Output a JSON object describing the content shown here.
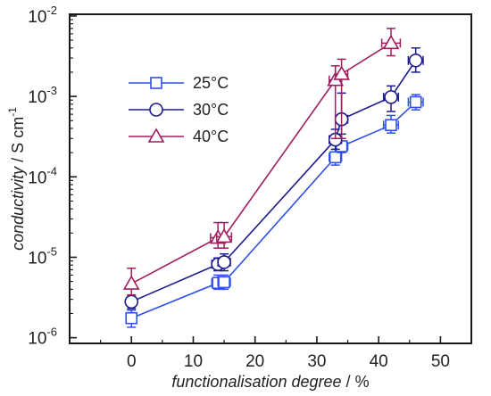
{
  "chart_data": {
    "type": "scatter",
    "title": "",
    "xlabel": {
      "italic": "functionalisation degree",
      "unit": "%"
    },
    "ylabel": {
      "italic": "conductivity",
      "unit": "S cm",
      "unit_sup": "-1"
    },
    "x_scale": "linear",
    "y_scale": "log",
    "xlim": [
      -10,
      55
    ],
    "ylim": [
      8.5e-07,
      0.0105
    ],
    "x_ticks": [
      0,
      10,
      20,
      30,
      40,
      50
    ],
    "x_tick_labels": [
      "0",
      "10",
      "20",
      "30",
      "40",
      "50"
    ],
    "y_ticks": [
      1e-06,
      1e-05,
      0.0001,
      0.001,
      0.01
    ],
    "y_tick_labels": [
      {
        "base": "10",
        "exp": "-6"
      },
      {
        "base": "10",
        "exp": "-5"
      },
      {
        "base": "10",
        "exp": "-4"
      },
      {
        "base": "10",
        "exp": "-3"
      },
      {
        "base": "10",
        "exp": "-2"
      }
    ],
    "grid": false,
    "legend_position": "left",
    "series": [
      {
        "name": "25°C",
        "marker": "square",
        "color": "#3050e8",
        "points": [
          {
            "x": 0,
            "y": 1.75e-06,
            "xerr": 0,
            "yerr": [
              1.35e-06,
              2.2e-06
            ]
          },
          {
            "x": 14,
            "y": 4.8e-06,
            "xerr": 1.0,
            "yerr": [
              4e-06,
              6e-06
            ]
          },
          {
            "x": 15,
            "y": 4.9e-06,
            "xerr": 1.0,
            "yerr": [
              4e-06,
              6e-06
            ]
          },
          {
            "x": 33,
            "y": 0.000175,
            "xerr": 1.0,
            "yerr": [
              0.00014,
              0.00022
            ]
          },
          {
            "x": 34,
            "y": 0.00024,
            "xerr": 1.0,
            "yerr": [
              0.0002,
              0.0003
            ]
          },
          {
            "x": 42,
            "y": 0.00044,
            "xerr": 1.2,
            "yerr": [
              0.00035,
              0.00058
            ]
          },
          {
            "x": 46,
            "y": 0.00085,
            "xerr": 1.2,
            "yerr": [
              0.00068,
              0.00105
            ]
          }
        ]
      },
      {
        "name": "30°C",
        "marker": "circle",
        "color": "#1c1c8c",
        "points": [
          {
            "x": 0,
            "y": 2.8e-06,
            "xerr": 0,
            "yerr": [
              2.3e-06,
              3.4e-06
            ]
          },
          {
            "x": 14,
            "y": 8.2e-06,
            "xerr": 1.0,
            "yerr": [
              6.8e-06,
              9.8e-06
            ]
          },
          {
            "x": 15,
            "y": 8.7e-06,
            "xerr": 1.0,
            "yerr": [
              6.8e-06,
              1.1e-05
            ]
          },
          {
            "x": 33,
            "y": 0.00029,
            "xerr": 1.0,
            "yerr": [
              0.00022,
              0.00039
            ]
          },
          {
            "x": 34,
            "y": 0.00052,
            "xerr": 1.0,
            "yerr": [
              0.00034,
              0.0011
            ]
          },
          {
            "x": 42,
            "y": 0.00098,
            "xerr": 1.2,
            "yerr": [
              0.00065,
              0.00135
            ]
          },
          {
            "x": 46,
            "y": 0.0028,
            "xerr": 1.2,
            "yerr": [
              0.002,
              0.004
            ]
          }
        ]
      },
      {
        "name": "40°C",
        "marker": "triangle",
        "color": "#a01e5e",
        "points": [
          {
            "x": 0,
            "y": 4.7e-06,
            "xerr": 0,
            "yerr": [
              3.4e-06,
              7.3e-06
            ]
          },
          {
            "x": 14,
            "y": 1.75e-05,
            "xerr": 1.2,
            "yerr": [
              1.3e-05,
              2.7e-05
            ]
          },
          {
            "x": 15,
            "y": 1.8e-05,
            "xerr": 1.2,
            "yerr": [
              1.3e-05,
              2.7e-05
            ]
          },
          {
            "x": 33,
            "y": 0.0016,
            "xerr": 1.0,
            "yerr": [
              0.0003,
              0.0024
            ]
          },
          {
            "x": 34,
            "y": 0.0019,
            "xerr": 1.0,
            "yerr": [
              0.0003,
              0.0029
            ]
          },
          {
            "x": 42,
            "y": 0.0046,
            "xerr": 1.5,
            "yerr": [
              0.0032,
              0.007
            ]
          }
        ]
      }
    ]
  }
}
